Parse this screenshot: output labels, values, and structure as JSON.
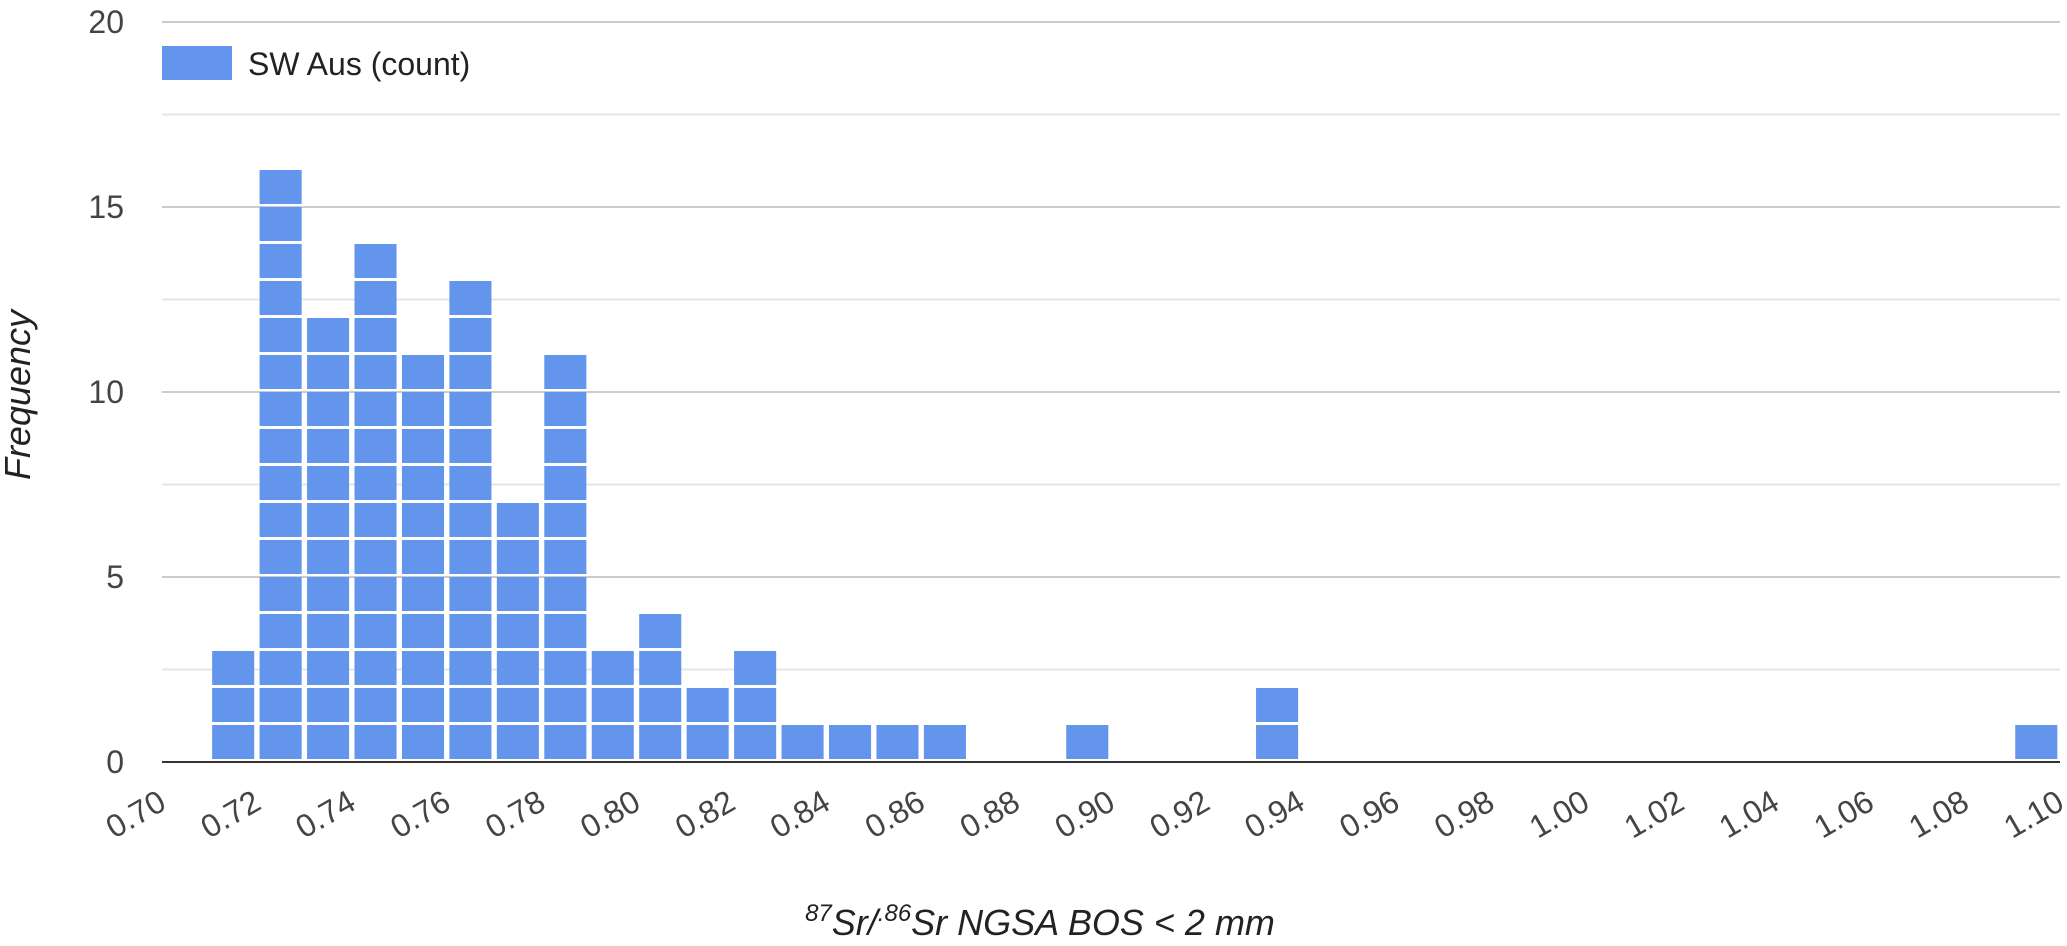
{
  "chart_data": {
    "type": "bar",
    "subtype": "stacked-unit-histogram",
    "x_start": 0.705,
    "bin_width": 0.0095,
    "bins": [
      {
        "x": 0.715,
        "count": 3
      },
      {
        "x": 0.725,
        "count": 16
      },
      {
        "x": 0.735,
        "count": 12
      },
      {
        "x": 0.745,
        "count": 14
      },
      {
        "x": 0.755,
        "count": 11
      },
      {
        "x": 0.765,
        "count": 13
      },
      {
        "x": 0.775,
        "count": 7
      },
      {
        "x": 0.785,
        "count": 11
      },
      {
        "x": 0.795,
        "count": 3
      },
      {
        "x": 0.805,
        "count": 4
      },
      {
        "x": 0.815,
        "count": 2
      },
      {
        "x": 0.825,
        "count": 3
      },
      {
        "x": 0.835,
        "count": 1
      },
      {
        "x": 0.845,
        "count": 1
      },
      {
        "x": 0.855,
        "count": 1
      },
      {
        "x": 0.865,
        "count": 1
      },
      {
        "x": 0.895,
        "count": 1
      },
      {
        "x": 0.935,
        "count": 2
      },
      {
        "x": 1.095,
        "count": 1
      }
    ],
    "series": [
      {
        "name": "SW Aus (count)",
        "color": "#6495ed"
      }
    ],
    "xlabel": {
      "sup1": "87",
      "part1": "Sr/",
      "sup2": ".86",
      "part2": "Sr NGSA BOS < 2 mm"
    },
    "ylabel": "Frequency",
    "xlim": [
      0.7,
      1.1
    ],
    "ylim": [
      0,
      20
    ],
    "x_ticks": [
      "0.70",
      "0.72",
      "0.74",
      "0.76",
      "0.78",
      "0.80",
      "0.82",
      "0.84",
      "0.86",
      "0.88",
      "0.90",
      "0.92",
      "0.94",
      "0.96",
      "0.98",
      "1.00",
      "1.02",
      "1.04",
      "1.06",
      "1.08",
      "1.10"
    ],
    "y_ticks": [
      "0",
      "5",
      "10",
      "15",
      "20"
    ],
    "y_minor_step": 2.5,
    "grid": true,
    "legend_position": "top-left"
  }
}
